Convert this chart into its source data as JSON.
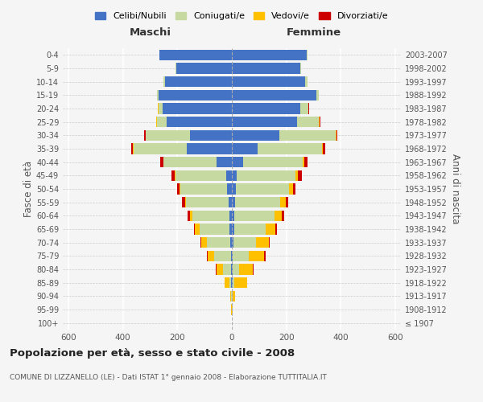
{
  "age_groups": [
    "100+",
    "95-99",
    "90-94",
    "85-89",
    "80-84",
    "75-79",
    "70-74",
    "65-69",
    "60-64",
    "55-59",
    "50-54",
    "45-49",
    "40-44",
    "35-39",
    "30-34",
    "25-29",
    "20-24",
    "15-19",
    "10-14",
    "5-9",
    "0-4"
  ],
  "birth_years": [
    "≤ 1907",
    "1908-1912",
    "1913-1917",
    "1918-1922",
    "1923-1927",
    "1928-1932",
    "1933-1937",
    "1938-1942",
    "1943-1947",
    "1948-1952",
    "1953-1957",
    "1958-1962",
    "1963-1967",
    "1968-1972",
    "1973-1977",
    "1978-1982",
    "1983-1987",
    "1988-1992",
    "1993-1997",
    "1998-2002",
    "2003-2007"
  ],
  "maschi": {
    "celibi": [
      0,
      0,
      0,
      2,
      2,
      4,
      6,
      8,
      10,
      12,
      18,
      22,
      55,
      165,
      155,
      240,
      255,
      270,
      245,
      205,
      265
    ],
    "coniugati": [
      0,
      1,
      2,
      8,
      30,
      60,
      85,
      110,
      135,
      155,
      170,
      185,
      195,
      195,
      160,
      35,
      15,
      5,
      5,
      2,
      2
    ],
    "vedovi": [
      0,
      2,
      5,
      18,
      25,
      25,
      20,
      18,
      10,
      5,
      4,
      3,
      2,
      2,
      2,
      2,
      1,
      0,
      0,
      0,
      0
    ],
    "divorziati": [
      0,
      0,
      0,
      0,
      2,
      2,
      3,
      4,
      8,
      10,
      10,
      12,
      10,
      8,
      5,
      2,
      1,
      0,
      0,
      0,
      0
    ]
  },
  "femmine": {
    "nubili": [
      0,
      0,
      1,
      2,
      2,
      3,
      5,
      8,
      10,
      12,
      14,
      18,
      40,
      95,
      175,
      240,
      250,
      310,
      270,
      250,
      275
    ],
    "coniugate": [
      0,
      1,
      2,
      8,
      25,
      60,
      85,
      115,
      145,
      165,
      195,
      215,
      220,
      235,
      205,
      80,
      30,
      10,
      8,
      3,
      2
    ],
    "vedove": [
      0,
      3,
      10,
      45,
      50,
      55,
      45,
      35,
      28,
      20,
      15,
      10,
      5,
      4,
      3,
      2,
      1,
      0,
      0,
      0,
      0
    ],
    "divorziate": [
      0,
      0,
      0,
      1,
      3,
      5,
      5,
      6,
      8,
      10,
      10,
      15,
      12,
      8,
      5,
      2,
      1,
      0,
      0,
      0,
      0
    ]
  },
  "colors": {
    "celibi": "#4472c4",
    "coniugati": "#c5d9a0",
    "vedovi": "#ffc000",
    "divorziati": "#cc0000"
  },
  "xlim": 620,
  "title": "Popolazione per età, sesso e stato civile - 2008",
  "subtitle": "COMUNE DI LIZZANELLO (LE) - Dati ISTAT 1° gennaio 2008 - Elaborazione TUTTITALIA.IT",
  "ylabel_left": "Fasce di età",
  "ylabel_right": "Anni di nascita",
  "legend_labels": [
    "Celibi/Nubili",
    "Coniugati/e",
    "Vedovi/e",
    "Divorziati/e"
  ],
  "bg_color": "#f5f5f5",
  "bar_height": 0.8
}
